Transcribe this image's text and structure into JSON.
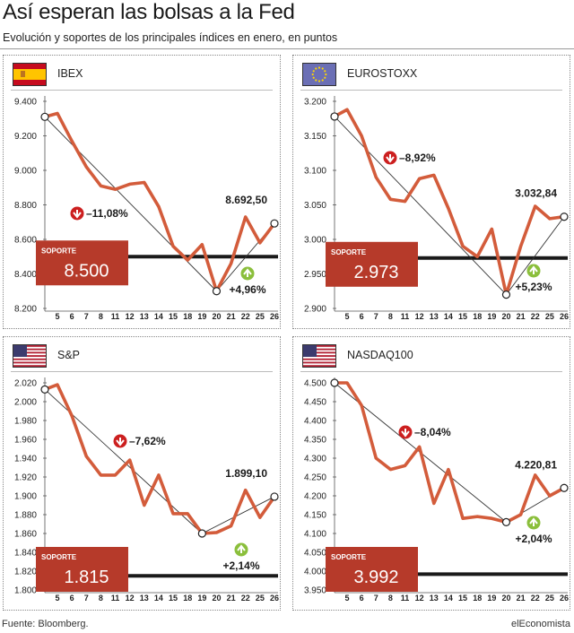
{
  "header": {
    "title": "Así esperan las bolsas a la Fed",
    "subtitle": "Evolución y soportes de los principales índices en enero, en puntos"
  },
  "footer": {
    "source": "Fuente: Bloomberg.",
    "brand": "elEconomista"
  },
  "colors": {
    "series": "#d35c3b",
    "support_box": "#b63a2a",
    "support_line": "#1a1a1a",
    "down_arrow": "#cc1f1f",
    "up_arrow": "#8bbf3c",
    "trend": "#333333"
  },
  "support_label": "SOPORTE",
  "chart_data": [
    {
      "type": "line",
      "name": "IBEX",
      "flag": "spain-flag",
      "categories": [
        "5",
        "6",
        "7",
        "8",
        "11",
        "12",
        "13",
        "14",
        "15",
        "18",
        "19",
        "20",
        "21",
        "22",
        "25",
        "26"
      ],
      "values": [
        9330,
        9170,
        9020,
        8910,
        8890,
        8920,
        8930,
        8790,
        8560,
        8480,
        8570,
        8300,
        8460,
        8730,
        8580,
        8692.5
      ],
      "ylim": [
        8200,
        9400
      ],
      "yticks": [
        8200,
        8400,
        8600,
        8800,
        9000,
        9200,
        9400
      ],
      "ytick_labels": [
        "8.200",
        "8.400",
        "8.600",
        "8.800",
        "9.000",
        "9.200",
        "9.400"
      ],
      "support": 8500,
      "support_label": "8.500",
      "last_label": "8.692,50",
      "down_label": "–11,08%",
      "up_label": "+4,96%",
      "start_value": 9310,
      "min_index": 11
    },
    {
      "type": "line",
      "name": "EUROSTOXX",
      "flag": "eu-flag",
      "categories": [
        "5",
        "6",
        "7",
        "8",
        "11",
        "12",
        "13",
        "14",
        "15",
        "18",
        "19",
        "20",
        "21",
        "22",
        "25",
        "26"
      ],
      "values": [
        3188,
        3150,
        3090,
        3058,
        3055,
        3088,
        3093,
        3045,
        2990,
        2975,
        3015,
        2920,
        2990,
        3048,
        3030,
        3032.84
      ],
      "ylim": [
        2900,
        3200
      ],
      "yticks": [
        2900,
        2950,
        3000,
        3050,
        3100,
        3150,
        3200
      ],
      "ytick_labels": [
        "2.900",
        "2.950",
        "3.000",
        "3.050",
        "3.100",
        "3.150",
        "3.200"
      ],
      "support": 2973,
      "support_label": "2.973",
      "last_label": "3.032,84",
      "down_label": "–8,92%",
      "up_label": "+5,23%",
      "start_value": 3178,
      "min_index": 11
    },
    {
      "type": "line",
      "name": "S&P",
      "flag": "usa-flag",
      "categories": [
        "5",
        "6",
        "7",
        "8",
        "11",
        "12",
        "13",
        "14",
        "15",
        "18",
        "19",
        "20",
        "21",
        "22",
        "25",
        "26"
      ],
      "values": [
        2018,
        1985,
        1942,
        1922,
        1922,
        1938,
        1890,
        1922,
        1881,
        1881,
        1860,
        1861,
        1868,
        1906,
        1877,
        1899.1
      ],
      "ylim": [
        1800,
        2020
      ],
      "yticks": [
        1800,
        1820,
        1840,
        1860,
        1880,
        1900,
        1920,
        1940,
        1960,
        1980,
        2000,
        2020
      ],
      "ytick_labels": [
        "1.800",
        "1.820",
        "1.840",
        "1.860",
        "1.880",
        "1.900",
        "1.920",
        "1.940",
        "1.960",
        "1.980",
        "2.000",
        "2.020"
      ],
      "support": 1815,
      "support_label": "1.815",
      "last_label": "1.899,10",
      "down_label": "–7,62%",
      "up_label": "+2,14%",
      "start_value": 2013,
      "min_index": 10
    },
    {
      "type": "line",
      "name": "NASDAQ100",
      "flag": "usa-flag",
      "categories": [
        "5",
        "6",
        "7",
        "8",
        "11",
        "12",
        "13",
        "14",
        "15",
        "18",
        "19",
        "20",
        "21",
        "22",
        "25",
        "26"
      ],
      "values": [
        4500,
        4440,
        4300,
        4270,
        4280,
        4330,
        4180,
        4270,
        4140,
        4145,
        4140,
        4130,
        4150,
        4255,
        4200,
        4220.81
      ],
      "ylim": [
        3950,
        4500
      ],
      "yticks": [
        3950,
        4000,
        4050,
        4100,
        4150,
        4200,
        4250,
        4300,
        4350,
        4400,
        4450,
        4500
      ],
      "ytick_labels": [
        "3.950",
        "4.000",
        "4.050",
        "4.100",
        "4.150",
        "4.200",
        "4.250",
        "4.300",
        "4.350",
        "4.400",
        "4.450",
        "4.500"
      ],
      "support": 3992,
      "support_label": "3.992",
      "last_label": "4.220,81",
      "down_label": "–8,04%",
      "up_label": "+2,04%",
      "start_value": 4500,
      "min_index": 11
    }
  ]
}
